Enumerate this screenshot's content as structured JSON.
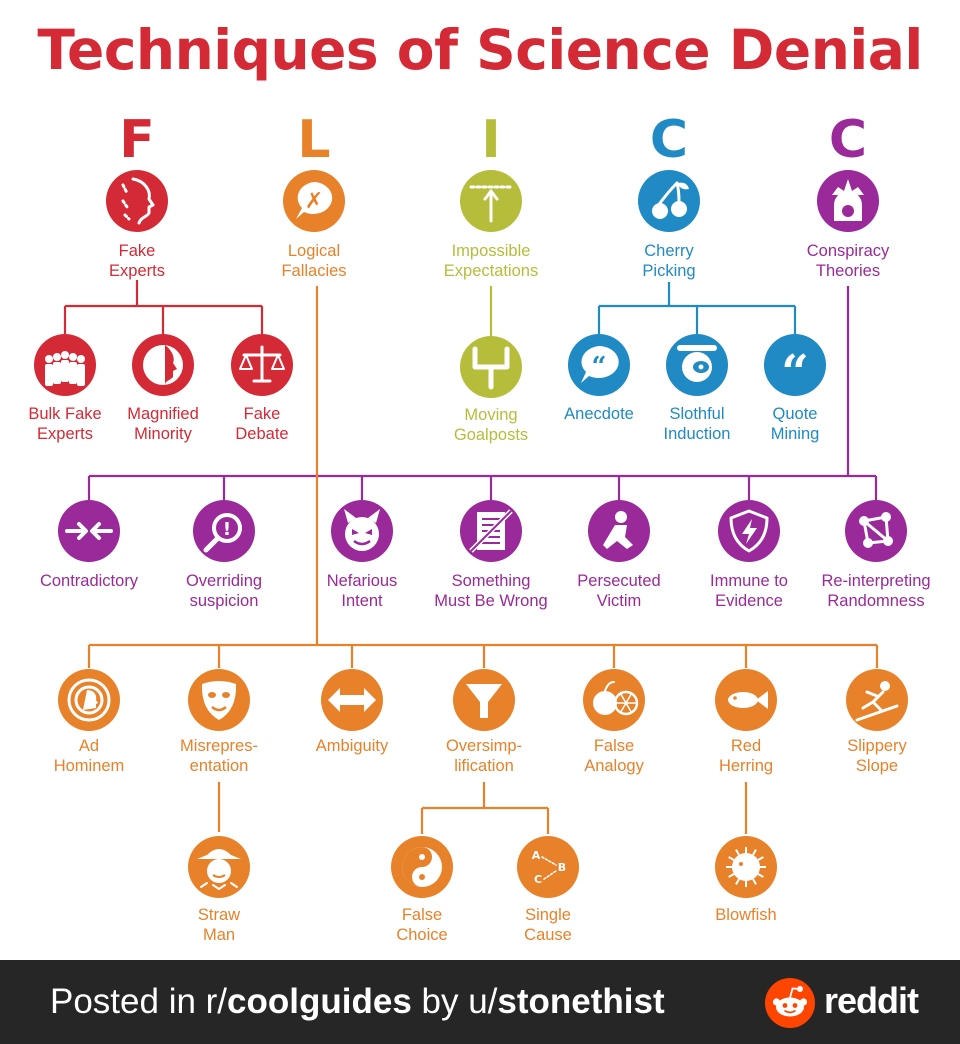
{
  "title": "Techniques of Science Denial",
  "colors": {
    "title": "#d42a35",
    "fake_experts": "#d42a35",
    "logical_fallacies": "#e8822a",
    "impossible_expectations": "#b5bd3a",
    "cherry_picking": "#1f8ac4",
    "conspiracy_theories": "#9a2a99",
    "footer_bg": "#262626",
    "reddit": "#ff4500"
  },
  "categories": [
    {
      "id": "fake_experts",
      "letter": "F",
      "lines": [
        "Fake",
        "Experts"
      ],
      "icon": "face-profile-icon"
    },
    {
      "id": "logical_fallacies",
      "letter": "L",
      "lines": [
        "Logical",
        "Fallacies"
      ],
      "icon": "speech-bubble-x-icon"
    },
    {
      "id": "impossible_expectations",
      "letter": "I",
      "lines": [
        "Impossible",
        "Expectations"
      ],
      "icon": "arrow-to-dotted-line-icon"
    },
    {
      "id": "cherry_picking",
      "letter": "C",
      "lines": [
        "Cherry",
        "Picking"
      ],
      "icon": "cherries-icon"
    },
    {
      "id": "conspiracy_theories",
      "letter": "C",
      "lines": [
        "Conspiracy",
        "Theories"
      ],
      "icon": "tinfoil-head-icon"
    }
  ],
  "fake_experts_children": [
    {
      "lines": [
        "Bulk Fake",
        "Experts"
      ],
      "icon": "crowd-icon"
    },
    {
      "lines": [
        "Magnified",
        "Minority"
      ],
      "icon": "magnified-face-icon"
    },
    {
      "lines": [
        "Fake",
        "Debate"
      ],
      "icon": "scales-icon"
    }
  ],
  "impossible_children": [
    {
      "lines": [
        "Moving",
        "Goalposts"
      ],
      "icon": "goalposts-icon"
    }
  ],
  "cherry_children": [
    {
      "lines": [
        "Anecdote"
      ],
      "icon": "quote-bubble-icon"
    },
    {
      "lines": [
        "Slothful",
        "Induction"
      ],
      "icon": "sloth-icon"
    },
    {
      "lines": [
        "Quote",
        "Mining"
      ],
      "icon": "quote-marks-icon"
    }
  ],
  "conspiracy_children": [
    {
      "lines": [
        "Contradictory"
      ],
      "icon": "opposing-arrows-icon"
    },
    {
      "lines": [
        "Overriding",
        "suspicion"
      ],
      "icon": "magnifier-alert-icon"
    },
    {
      "lines": [
        "Nefarious",
        "Intent"
      ],
      "icon": "devil-face-icon"
    },
    {
      "lines": [
        "Something",
        "Must Be Wrong"
      ],
      "icon": "crossed-document-icon"
    },
    {
      "lines": [
        "Persecuted",
        "Victim"
      ],
      "icon": "kneeling-figure-icon"
    },
    {
      "lines": [
        "Immune to",
        "Evidence"
      ],
      "icon": "shield-bolt-icon"
    },
    {
      "lines": [
        "Re-interpreting",
        "Randomness"
      ],
      "icon": "connected-dots-icon"
    }
  ],
  "fallacy_children": [
    {
      "lines": [
        "Ad",
        "Hominem"
      ],
      "icon": "target-head-icon"
    },
    {
      "lines": [
        "Misrepres-",
        "entation"
      ],
      "icon": "mask-icon"
    },
    {
      "lines": [
        "Ambiguity"
      ],
      "icon": "double-arrow-icon"
    },
    {
      "lines": [
        "Oversimp-",
        "lification"
      ],
      "icon": "funnel-icon"
    },
    {
      "lines": [
        "False",
        "Analogy"
      ],
      "icon": "apple-orange-icon"
    },
    {
      "lines": [
        "Red",
        "Herring"
      ],
      "icon": "fish-icon"
    },
    {
      "lines": [
        "Slippery",
        "Slope"
      ],
      "icon": "slipping-figure-icon"
    }
  ],
  "misrep_children": [
    {
      "lines": [
        "Straw",
        "Man"
      ],
      "icon": "scarecrow-icon"
    }
  ],
  "oversimp_children": [
    {
      "lines": [
        "False",
        "Choice"
      ],
      "icon": "yin-yang-icon"
    },
    {
      "lines": [
        "Single",
        "Cause"
      ],
      "icon": "abc-arrows-icon"
    }
  ],
  "herring_children": [
    {
      "lines": [
        "Blowfish"
      ],
      "icon": "blowfish-icon"
    }
  ],
  "footer": {
    "prefix": "Posted in r/",
    "subreddit": "coolguides",
    "middle": " by u/",
    "user": "stonethist",
    "brand": "reddit",
    "brand_icon": "reddit-snoo-icon"
  }
}
